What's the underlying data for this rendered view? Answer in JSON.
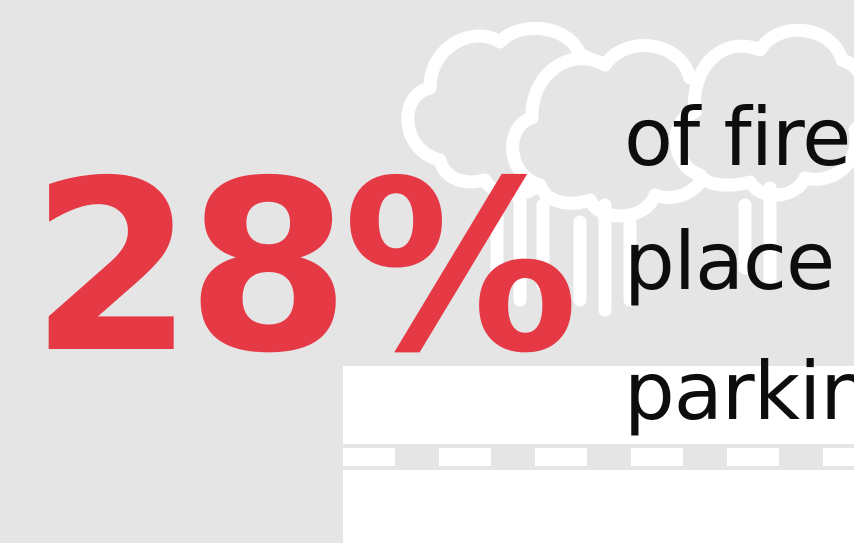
{
  "colors": {
    "background": "#e5e5e5",
    "accent": "#e63946",
    "text": "#0d0d0d",
    "illustration": "#ffffff"
  },
  "stat": {
    "value": "28%"
  },
  "caption": {
    "line_1": "of fire",
    "line_2": "place",
    "line_3": "parkin"
  },
  "illustration": {
    "tree_icon": "tree-outline-icon",
    "road_icon": "road-icon"
  }
}
